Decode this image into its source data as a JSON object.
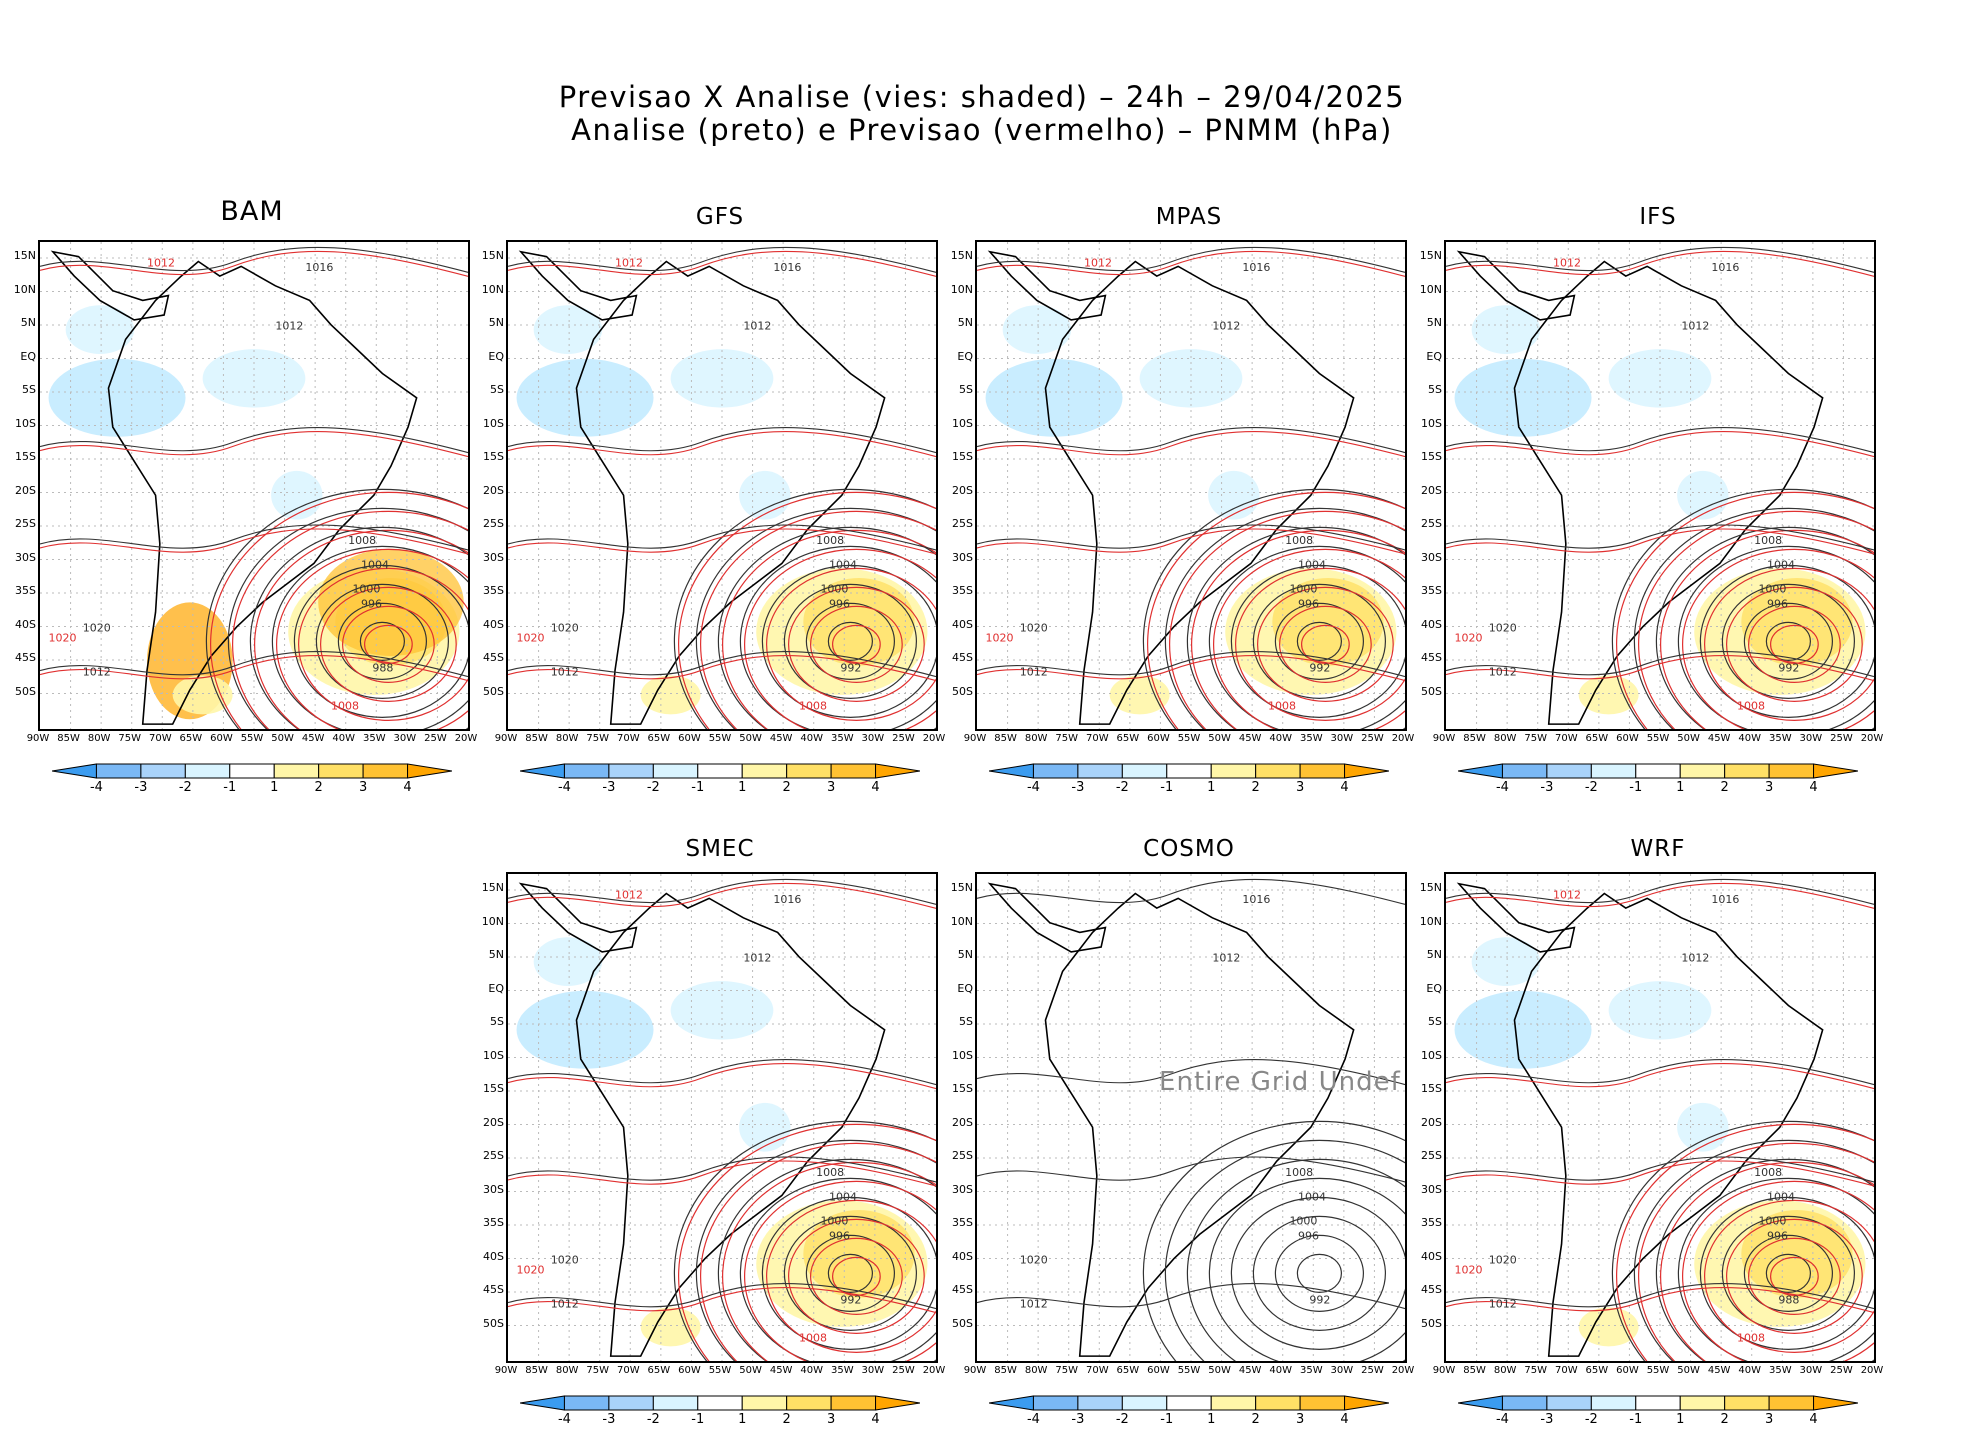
{
  "title": {
    "line1": "Previsao X Analise (vies: shaded) – 24h – 29/04/2025",
    "line2": "Analise (preto) e Previsao (vermelho) – PNMM (hPa)"
  },
  "lat_labels": [
    "15N",
    "10N",
    "5N",
    "EQ",
    "5S",
    "10S",
    "15S",
    "20S",
    "25S",
    "30S",
    "35S",
    "40S",
    "45S",
    "50S"
  ],
  "lon_labels": [
    "90W",
    "85W",
    "80W",
    "75W",
    "70W",
    "65W",
    "60W",
    "55W",
    "50W",
    "45W",
    "40W",
    "35W",
    "30W",
    "25W",
    "20W"
  ],
  "colorbar": {
    "labels": [
      "-4",
      "-3",
      "-2",
      "-1",
      "1",
      "2",
      "3",
      "4"
    ],
    "colors": [
      "#3b9cf0",
      "#7ab8f5",
      "#a9d3fa",
      "#d9f4ff",
      "#ffffff",
      "#fff6a8",
      "#ffe066",
      "#ffc233",
      "#ffa500"
    ]
  },
  "panels": [
    {
      "name": "BAM",
      "has_forecast": true,
      "bias": "mixed",
      "low_label": "988"
    },
    {
      "name": "GFS",
      "has_forecast": true,
      "bias": "mixed",
      "low_label": "992"
    },
    {
      "name": "MPAS",
      "has_forecast": true,
      "bias": "mixed",
      "low_label": "992"
    },
    {
      "name": "IFS",
      "has_forecast": true,
      "bias": "mixed",
      "low_label": "992"
    },
    {
      "name": "SMEC",
      "has_forecast": true,
      "bias": "mixed",
      "low_label": "992"
    },
    {
      "name": "COSMO",
      "has_forecast": false,
      "bias": "none",
      "low_label": "992",
      "undef_text": "Entire Grid Undef"
    },
    {
      "name": "WRF",
      "has_forecast": true,
      "bias": "mixed",
      "low_label": "988"
    }
  ],
  "isobar_labels": {
    "high": "1016",
    "mid": "1012",
    "ring1": "1008",
    "ring2": "1004",
    "ring3": "1000",
    "ring4": "996",
    "west": "1020"
  }
}
